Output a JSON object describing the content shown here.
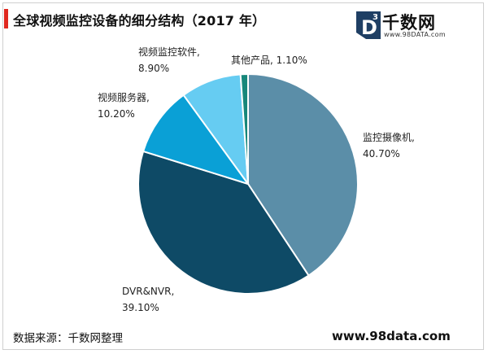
{
  "header": {
    "title": "全球视频监控设备的细分结构（2017 年）"
  },
  "logo": {
    "mark_letter": "D",
    "mark_sup": "3",
    "name": "千数网",
    "url": "www.98DATA.com"
  },
  "footer": {
    "source": "数据来源：千数网整理",
    "website": "www.98data.com"
  },
  "chart_data": {
    "type": "pie",
    "title": "全球视频监控设备的细分结构（2017 年）",
    "slices": [
      {
        "name": "监控摄像机,",
        "value": 40.7,
        "label": "40.70%",
        "color": "#5b8ea8"
      },
      {
        "name": "DVR&NVR,",
        "value": 39.1,
        "label": "39.10%",
        "color": "#0e4a66"
      },
      {
        "name": "视频服务器,",
        "value": 10.2,
        "label": "10.20%",
        "color": "#0aa0d6"
      },
      {
        "name": "视频监控软件,",
        "value": 8.9,
        "label": "8.90%",
        "color": "#66ccf2"
      },
      {
        "name": "其他产品,",
        "value": 1.1,
        "label": "1.10%",
        "color": "#17877a"
      }
    ],
    "start_angle_deg": 0,
    "direction": "clockwise",
    "legend": "none"
  }
}
